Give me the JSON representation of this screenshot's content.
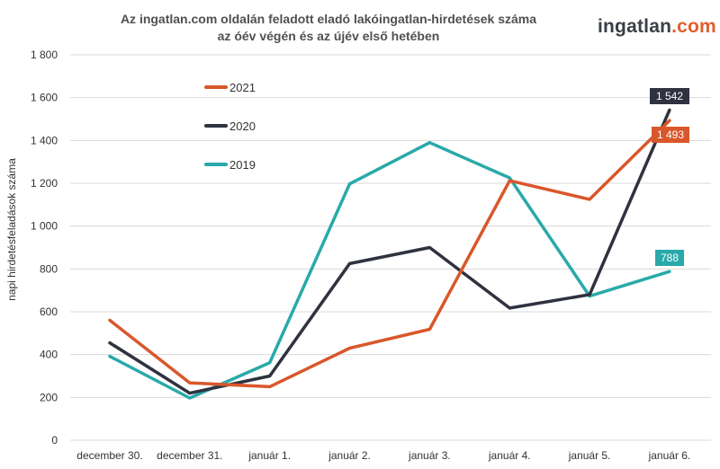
{
  "chart_data": {
    "type": "line",
    "title_line1": "Az ingatlan.com oldalán feladott eladó lakóingatlan-hirdetések száma",
    "title_line2": "az óév végén és az újév első hetében",
    "ylabel": "napi hirdetésfeladások száma",
    "ylim": [
      0,
      1800
    ],
    "yticks": [
      "0",
      "200",
      "400",
      "600",
      "800",
      "1 000",
      "1 200",
      "1 400",
      "1 600",
      "1 800"
    ],
    "categories": [
      "december 30.",
      "december 31.",
      "január 1.",
      "január 2.",
      "január 3.",
      "január 4.",
      "január 5.",
      "január 6."
    ],
    "series": [
      {
        "name": "2021",
        "color": "#d9572b",
        "values": [
          560,
          268,
          250,
          430,
          518,
          1212,
          1125,
          1493
        ],
        "last_label": "1 493"
      },
      {
        "name": "2020",
        "color": "#2f323f",
        "values": [
          455,
          220,
          300,
          825,
          900,
          617,
          680,
          1542
        ],
        "last_label": "1 542"
      },
      {
        "name": "2019",
        "color": "#2aa9a9",
        "values": [
          392,
          197,
          362,
          1197,
          1390,
          1225,
          673,
          788
        ],
        "last_label": "788"
      }
    ],
    "legend_position": "top-left",
    "grid": true
  },
  "brand": {
    "logo_main": "ingatlan",
    "logo_dot": ".com"
  }
}
